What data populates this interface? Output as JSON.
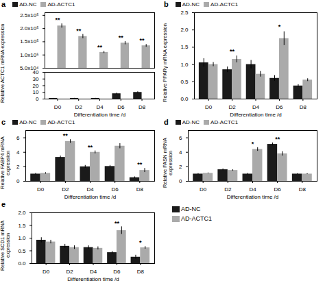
{
  "chart_data": [
    {
      "type": "bar",
      "title": "a",
      "xlabel": "Differentiation time /d",
      "categories": [
        "D0",
        "D2",
        "D4",
        "D6",
        "D8"
      ],
      "series": [
        {
          "name": "AD-NC",
          "color": "#1a1a1a",
          "values": [
            1,
            1,
            1,
            8,
            10
          ],
          "errors": [
            0.2,
            0.2,
            0.2,
            1.0,
            1.0
          ]
        }
      ],
      "ylim": [
        0,
        40
      ],
      "yticks": [
        0,
        10,
        20,
        30,
        40
      ],
      "legend": "top"
    },
    {
      "type": "bar",
      "ylabel": "Relative ACTC1 mRNA expression",
      "categories": [
        "D0",
        "D2",
        "D4",
        "D6",
        "D8"
      ],
      "series": [
        {
          "name": "AD-ACTC1",
          "color": "#aaaaaa",
          "values": [
            210000,
            170000,
            110000,
            145000,
            135000
          ],
          "errors": [
            8000,
            8000,
            4000,
            6000,
            5000
          ]
        }
      ],
      "ylim": [
        50000,
        260000
      ],
      "yticks": [
        {
          "value": 50000,
          "label": "5.0x10⁴"
        },
        {
          "value": 100000,
          "label": "1.0x10⁵"
        },
        {
          "value": 150000,
          "label": "1.5x10⁵"
        },
        {
          "value": 200000,
          "label": "2.0x10⁵"
        },
        {
          "value": 250000,
          "label": "2.5x10⁵"
        }
      ],
      "annotations": [
        {
          "category": "D0",
          "text": "**"
        },
        {
          "category": "D2",
          "text": "**"
        },
        {
          "category": "D4",
          "text": "**"
        },
        {
          "category": "D6",
          "text": "**"
        },
        {
          "category": "D8",
          "text": "**"
        }
      ],
      "tick_labels": "y"
    },
    {
      "type": "bar",
      "title": "b",
      "ylabel": "Relative PPARγ mRNA expression",
      "xlabel": "Differentiation time /d",
      "categories": [
        "D0",
        "D2",
        "D4",
        "D6",
        "D8"
      ],
      "series": [
        {
          "name": "AD-NC",
          "color": "#1a1a1a",
          "values": [
            1.05,
            0.85,
            1.0,
            0.6,
            0.38
          ],
          "errors": [
            0.12,
            0.08,
            0.12,
            0.08,
            0.04
          ]
        },
        {
          "name": "AD-ACTC1",
          "color": "#aaaaaa",
          "values": [
            1.0,
            1.15,
            0.72,
            1.75,
            0.55
          ],
          "errors": [
            0.06,
            0.1,
            0.08,
            0.2,
            0.04
          ]
        }
      ],
      "ylim": [
        0.0,
        2.5
      ],
      "yticks": [
        {
          "value": 0.0,
          "label": "0.0"
        },
        0.5,
        {
          "value": 1.0,
          "label": "1.0"
        },
        1.5,
        {
          "value": 2.0,
          "label": "2.0"
        },
        2.5
      ],
      "annotations": [
        {
          "category": "D2",
          "text": "**"
        },
        {
          "category": "D6",
          "text": "*"
        }
      ],
      "legend": "top"
    },
    {
      "type": "bar",
      "title": "c",
      "ylabel": "Relative FABP4 mRNA expression",
      "xlabel": "Differentiation time /d",
      "categories": [
        "D0",
        "D2",
        "D4",
        "D6",
        "D8"
      ],
      "series": [
        {
          "name": "AD-NC",
          "color": "#1a1a1a",
          "values": [
            1.0,
            3.3,
            2.0,
            2.05,
            0.5
          ],
          "errors": [
            0.1,
            0.2,
            0.2,
            0.15,
            0.12
          ]
        },
        {
          "name": "AD-ACTC1",
          "color": "#aaaaaa",
          "values": [
            1.1,
            5.5,
            4.0,
            4.85,
            1.5
          ],
          "errors": [
            0.1,
            0.25,
            0.2,
            0.35,
            0.28
          ]
        }
      ],
      "ylim": [
        0,
        7
      ],
      "yticks": [
        0,
        2,
        4,
        6
      ],
      "annotations": [
        {
          "category": "D2",
          "text": "**"
        },
        {
          "category": "D4",
          "text": "**"
        },
        {
          "category": "D8",
          "text": "**"
        }
      ],
      "legend": "top"
    },
    {
      "type": "bar",
      "title": "d",
      "ylabel": "Relative FASN mRNA expression",
      "xlabel": "Differentiation time /d",
      "categories": [
        "D0",
        "D2",
        "D4",
        "D6",
        "D8"
      ],
      "series": [
        {
          "name": "AD-NC",
          "color": "#1a1a1a",
          "values": [
            1.0,
            1.6,
            1.0,
            5.1,
            1.0
          ],
          "errors": [
            0.08,
            0.12,
            0.1,
            0.2,
            0.06
          ]
        },
        {
          "name": "AD-ACTC1",
          "color": "#aaaaaa",
          "values": [
            1.1,
            1.5,
            4.4,
            3.8,
            1.0
          ],
          "errors": [
            0.06,
            0.1,
            0.25,
            0.3,
            0.06
          ]
        }
      ],
      "ylim": [
        0,
        7
      ],
      "yticks": [
        0,
        2,
        4,
        6
      ],
      "annotations": [
        {
          "category": "D4",
          "text": "*"
        },
        {
          "category": "D6",
          "text": "**"
        }
      ],
      "legend": "top"
    },
    {
      "type": "bar",
      "title": "e",
      "ylabel": "Relative SCD1 mRNA expression",
      "xlabel": "Differentiation time /d",
      "categories": [
        "D0",
        "D2",
        "D4",
        "D6",
        "D8"
      ],
      "series": [
        {
          "name": "AD-NC",
          "color": "#1a1a1a",
          "values": [
            0.92,
            0.68,
            0.63,
            0.43,
            0.25
          ],
          "errors": [
            0.1,
            0.08,
            0.07,
            0.05,
            0.08
          ]
        },
        {
          "name": "AD-ACTC1",
          "color": "#aaaaaa",
          "values": [
            0.85,
            0.63,
            0.6,
            1.3,
            0.62
          ],
          "errors": [
            0.07,
            0.07,
            0.06,
            0.15,
            0.05
          ]
        }
      ],
      "ylim": [
        0.0,
        2.0
      ],
      "yticks": [
        {
          "value": 0.0,
          "label": "0.0"
        },
        0.5,
        {
          "value": 1.0,
          "label": "1.0"
        },
        1.5,
        {
          "value": 2.0,
          "label": "2.0"
        }
      ],
      "annotations": [
        {
          "category": "D6",
          "text": "**"
        },
        {
          "category": "D8",
          "text": "*"
        }
      ],
      "legend": "right"
    }
  ]
}
